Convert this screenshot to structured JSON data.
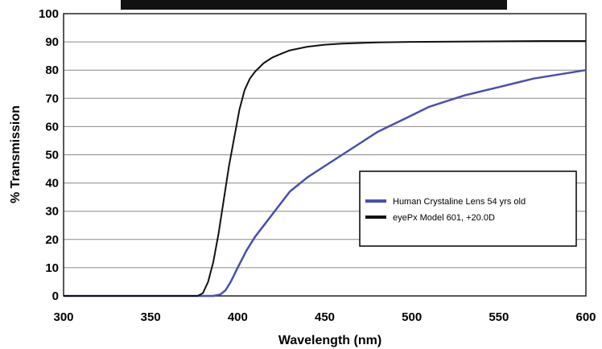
{
  "chart_data": {
    "type": "line",
    "title": "",
    "xlabel": "Wavelength (nm)",
    "ylabel": "% Transmission",
    "xlim": [
      300,
      600
    ],
    "ylim": [
      0,
      100
    ],
    "xticks": [
      "300",
      "350",
      "400",
      "450",
      "500",
      "550",
      "600"
    ],
    "yticks": [
      "0",
      "10",
      "20",
      "30",
      "40",
      "50",
      "60",
      "70",
      "80",
      "90",
      "100"
    ],
    "grid": true,
    "legend_position": "right-center",
    "series": [
      {
        "name": "Human Crystaline Lens 54 yrs old",
        "color": "#4a4fb0",
        "x": [
          300,
          380,
          386,
          390,
          393,
          396,
          400,
          405,
          410,
          415,
          420,
          425,
          430,
          440,
          450,
          460,
          470,
          480,
          490,
          500,
          510,
          520,
          530,
          540,
          550,
          560,
          570,
          580,
          590,
          600
        ],
        "y": [
          0,
          0,
          0,
          0.5,
          2,
          5,
          10,
          16,
          21,
          25,
          29,
          33,
          37,
          42,
          46,
          50,
          54,
          58,
          61,
          64,
          67,
          69,
          71,
          72.5,
          74,
          75.5,
          77,
          78,
          79,
          80
        ]
      },
      {
        "name": "eyePx Model 601, +20.0D",
        "color": "#111111",
        "x": [
          300,
          377,
          380,
          383,
          386,
          389,
          392,
          395,
          398,
          401,
          404,
          407,
          410,
          415,
          420,
          425,
          430,
          440,
          450,
          460,
          470,
          480,
          500,
          525,
          550,
          575,
          600
        ],
        "y": [
          0,
          0,
          1,
          5,
          12,
          22,
          34,
          46,
          56,
          66,
          73,
          77,
          79.5,
          82.5,
          84.5,
          85.8,
          87,
          88.3,
          89,
          89.4,
          89.6,
          89.8,
          90,
          90.1,
          90.2,
          90.3,
          90.3
        ]
      }
    ]
  }
}
